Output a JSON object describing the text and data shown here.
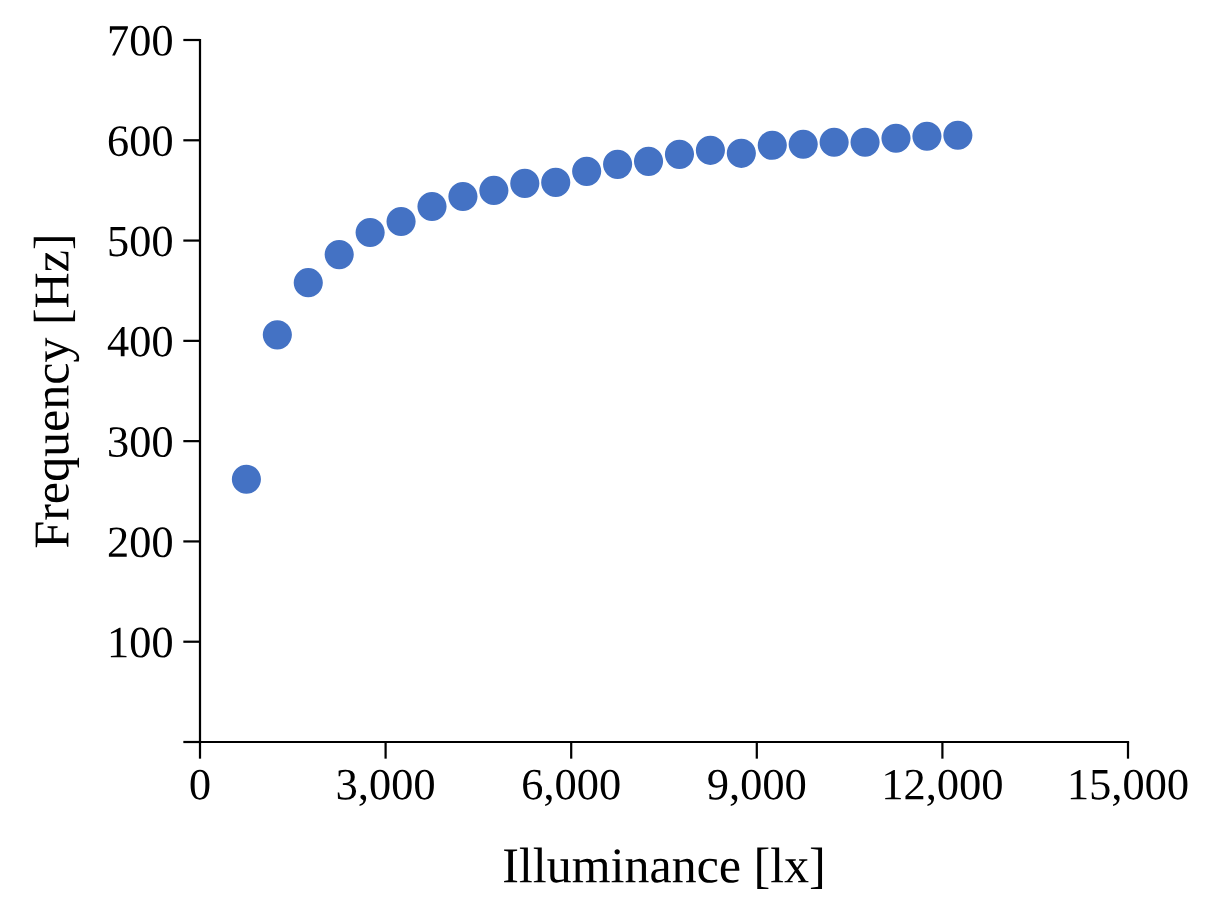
{
  "chart_data": {
    "type": "scatter",
    "xlabel": "Illuminance [lx]",
    "ylabel": "Frequency [Hz]",
    "x": [
      750,
      1250,
      1750,
      2250,
      2750,
      3250,
      3750,
      4250,
      4750,
      5250,
      5750,
      6250,
      6750,
      7250,
      7750,
      8250,
      8750,
      9250,
      9750,
      10250,
      10750,
      11250,
      11750,
      12250
    ],
    "series": [
      {
        "color": "#4472c4",
        "values": [
          262,
          406,
          458,
          486,
          508,
          519,
          534,
          544,
          550,
          557,
          558,
          569,
          576,
          579,
          586,
          590,
          587,
          595,
          596,
          598,
          598,
          602,
          604,
          605
        ]
      }
    ],
    "xlim": [
      0,
      15000
    ],
    "xticks": [
      {
        "value": 0,
        "label": "0"
      },
      {
        "value": 3000,
        "label": "3,000"
      },
      {
        "value": 6000,
        "label": "6,000"
      },
      {
        "value": 9000,
        "label": "9,000"
      },
      {
        "value": 12000,
        "label": "12,000"
      },
      {
        "value": 15000,
        "label": "15,000"
      }
    ],
    "ylim": [
      0,
      700
    ],
    "yticks": [
      {
        "value": 0,
        "label": null
      },
      100,
      200,
      300,
      400,
      500,
      600,
      700
    ],
    "marker": "circle",
    "grid": false,
    "legend": false
  }
}
